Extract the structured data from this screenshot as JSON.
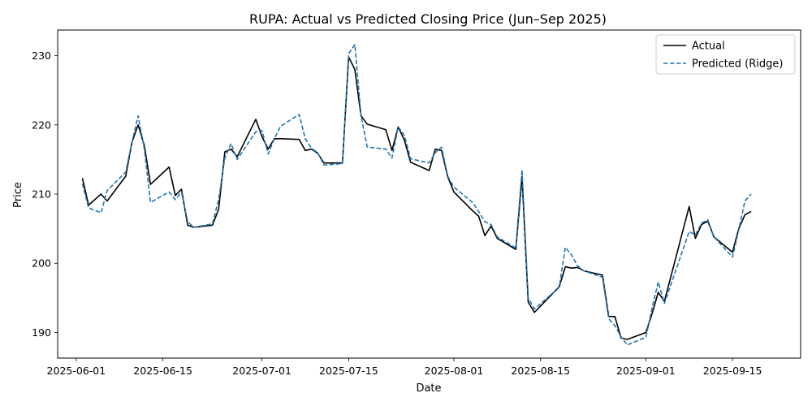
{
  "chart_data": {
    "type": "line",
    "title": "RUPA: Actual vs Predicted Closing Price (Jun–Sep 2025)",
    "xlabel": "Date",
    "ylabel": "Price",
    "xlim": [
      "2025-05-29",
      "2025-09-26"
    ],
    "ylim": [
      186.3,
      233.7
    ],
    "x_ticks": [
      "2025-06-01",
      "2025-06-15",
      "2025-07-01",
      "2025-07-15",
      "2025-08-01",
      "2025-08-15",
      "2025-09-01",
      "2025-09-15"
    ],
    "y_ticks": [
      190,
      200,
      210,
      220,
      230
    ],
    "legend_position": "top-right",
    "grid": false,
    "dates": [
      "2025-06-02",
      "2025-06-03",
      "2025-06-05",
      "2025-06-06",
      "2025-06-09",
      "2025-06-10",
      "2025-06-11",
      "2025-06-12",
      "2025-06-13",
      "2025-06-16",
      "2025-06-17",
      "2025-06-18",
      "2025-06-19",
      "2025-06-20",
      "2025-06-23",
      "2025-06-24",
      "2025-06-25",
      "2025-06-26",
      "2025-06-27",
      "2025-06-30",
      "2025-07-01",
      "2025-07-02",
      "2025-07-03",
      "2025-07-04",
      "2025-07-07",
      "2025-07-08",
      "2025-07-09",
      "2025-07-10",
      "2025-07-11",
      "2025-07-14",
      "2025-07-15",
      "2025-07-16",
      "2025-07-17",
      "2025-07-18",
      "2025-07-21",
      "2025-07-22",
      "2025-07-23",
      "2025-07-24",
      "2025-07-25",
      "2025-07-28",
      "2025-07-29",
      "2025-07-30",
      "2025-07-31",
      "2025-08-01",
      "2025-08-04",
      "2025-08-05",
      "2025-08-06",
      "2025-08-07",
      "2025-08-08",
      "2025-08-11",
      "2025-08-12",
      "2025-08-13",
      "2025-08-14",
      "2025-08-18",
      "2025-08-19",
      "2025-08-20",
      "2025-08-21",
      "2025-08-22",
      "2025-08-25",
      "2025-08-26",
      "2025-08-27",
      "2025-08-28",
      "2025-08-29",
      "2025-09-01",
      "2025-09-02",
      "2025-09-03",
      "2025-09-04",
      "2025-09-08",
      "2025-09-09",
      "2025-09-10",
      "2025-09-11",
      "2025-09-12",
      "2025-09-15",
      "2025-09-16",
      "2025-09-17",
      "2025-09-18"
    ],
    "series": [
      {
        "name": "Actual",
        "color": "#000000",
        "style": "solid",
        "values": [
          212.3,
          208.4,
          210.0,
          209.0,
          212.6,
          217.5,
          220.0,
          217.0,
          211.4,
          213.9,
          209.8,
          210.7,
          205.5,
          205.2,
          205.5,
          207.8,
          216.1,
          216.5,
          215.4,
          220.8,
          218.3,
          216.5,
          218.0,
          218.0,
          217.9,
          216.3,
          216.5,
          215.9,
          214.5,
          214.5,
          229.8,
          228.0,
          221.3,
          220.1,
          219.3,
          216.3,
          219.7,
          217.8,
          214.6,
          213.4,
          216.5,
          216.3,
          212.5,
          210.3,
          207.6,
          206.8,
          204.0,
          205.4,
          203.6,
          202.0,
          212.5,
          194.4,
          192.9,
          196.6,
          199.5,
          199.3,
          199.4,
          198.9,
          198.3,
          192.3,
          192.3,
          189.2,
          189.0,
          190.0,
          192.7,
          195.8,
          194.5,
          208.2,
          203.6,
          205.6,
          206.1,
          203.8,
          201.6,
          205.0,
          207.0,
          207.5
        ]
      },
      {
        "name": "Predicted (Ridge)",
        "color": "#1f77b4",
        "style": "dashed",
        "values": [
          211.5,
          208.0,
          207.3,
          210.5,
          213.2,
          217.5,
          221.3,
          216.5,
          208.8,
          210.3,
          209.2,
          210.3,
          206.0,
          205.2,
          205.7,
          209.2,
          215.2,
          217.3,
          215.0,
          219.0,
          219.2,
          215.8,
          218.0,
          219.8,
          221.5,
          218.0,
          216.6,
          216.0,
          214.2,
          214.4,
          230.3,
          231.6,
          221.3,
          216.8,
          216.5,
          215.2,
          219.7,
          218.5,
          215.1,
          214.5,
          216.0,
          216.8,
          212.6,
          211.0,
          208.8,
          207.5,
          206.0,
          205.6,
          203.8,
          202.2,
          213.5,
          195.0,
          193.4,
          196.5,
          202.3,
          201.2,
          199.6,
          198.9,
          198.0,
          192.0,
          191.0,
          189.4,
          188.2,
          189.3,
          193.5,
          197.3,
          194.2,
          204.6,
          204.1,
          205.8,
          206.3,
          203.8,
          200.9,
          204.8,
          209.0,
          210.0
        ]
      }
    ]
  }
}
